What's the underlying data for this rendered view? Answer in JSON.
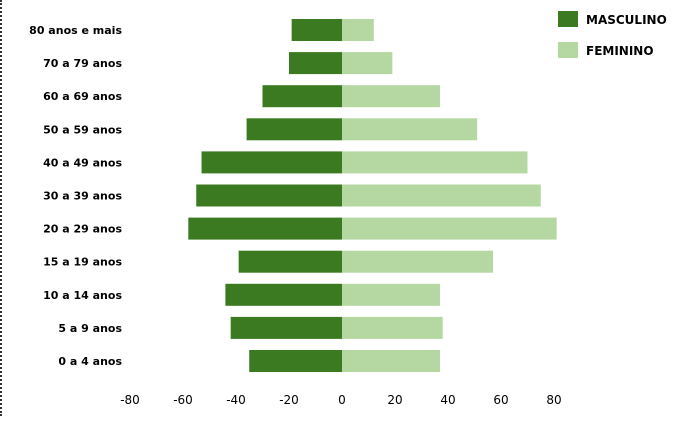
{
  "chart_data": {
    "type": "bar",
    "orientation": "horizontal",
    "categories": [
      "80 anos e mais",
      "70 a 79 anos",
      "60 a 69 anos",
      "50 a 59 anos",
      "40 a 49 anos",
      "30 a 39 anos",
      "20 a 29 anos",
      "15 a 19 anos",
      "10 a 14 anos",
      "5 a 9 anos",
      "0 a 4 anos"
    ],
    "series": [
      {
        "name": "MASCULINO",
        "color": "#3c7a22",
        "values": [
          -19,
          -20,
          -30,
          -36,
          -53,
          -55,
          -58,
          -39,
          -44,
          -42,
          -35
        ]
      },
      {
        "name": "FEMININO",
        "color": "#b5d7a2",
        "values": [
          12,
          19,
          37,
          51,
          70,
          75,
          81,
          57,
          37,
          38,
          37
        ]
      }
    ],
    "xticks": [
      -80,
      -60,
      -40,
      -20,
      0,
      20,
      40,
      60,
      80
    ],
    "xlim": [
      -80,
      80
    ],
    "title": "",
    "xlabel": "",
    "ylabel": "",
    "grid": false,
    "legend_position": "top-right"
  }
}
